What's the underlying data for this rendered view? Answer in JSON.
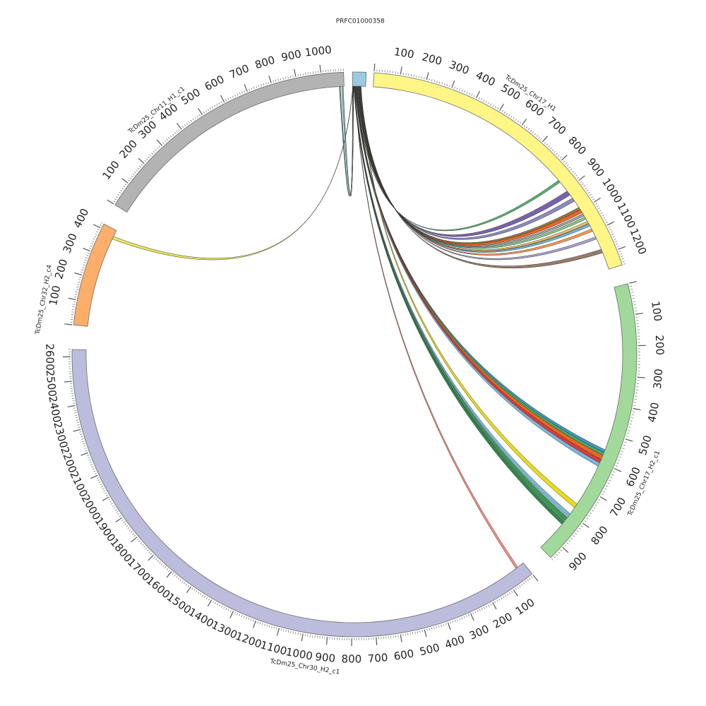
{
  "chart_data": {
    "type": "circos",
    "title": "",
    "chromosomes": [
      {
        "id": "prfc",
        "name": "PRFC01000358",
        "length": 40,
        "color": "#9ecae1",
        "tick_labels": []
      },
      {
        "id": "chr17_h1",
        "name": "TcDm25_Chr17_H1",
        "length": 1260,
        "color": "#fff685",
        "tick_labels": [
          "100",
          "200",
          "300",
          "400",
          "500",
          "600",
          "700",
          "800",
          "900",
          "1000",
          "1100",
          "1200"
        ]
      },
      {
        "id": "chr17_h2",
        "name": "TcDm25_Chr17_H2_c1",
        "length": 950,
        "color": "#a1d99b",
        "tick_labels": [
          "100",
          "200",
          "300",
          "400",
          "500",
          "600",
          "700",
          "800",
          "900"
        ]
      },
      {
        "id": "chr30_h2",
        "name": "TcDm25_Chr30_H2_c1",
        "length": 2630,
        "color": "#bcbddc",
        "tick_labels": [
          "100",
          "200",
          "300",
          "400",
          "500",
          "600",
          "700",
          "800",
          "900",
          "1000",
          "1100",
          "1200",
          "1300",
          "1400",
          "1500",
          "1600",
          "1700",
          "1800",
          "1900",
          "2000",
          "2100",
          "2200",
          "2300",
          "2400",
          "2500",
          "2600"
        ]
      },
      {
        "id": "chr32_h2",
        "name": "TcDm25_Chr32_H2_c4",
        "length": 420,
        "color": "#fdae6b",
        "tick_labels": [
          "100",
          "200",
          "300",
          "400"
        ]
      },
      {
        "id": "chr11_h1",
        "name": "TcDm25_Chr11_H1_c1",
        "length": 1090,
        "color": "#b3b3b3",
        "tick_labels": [
          "100",
          "200",
          "300",
          "400",
          "500",
          "600",
          "700",
          "800",
          "900",
          "1000"
        ]
      }
    ],
    "links": [
      {
        "from": "prfc",
        "f": [
          12,
          13
        ],
        "to": "chr17_h1",
        "t": [
          850,
          860
        ],
        "color": "#41ab5d"
      },
      {
        "from": "prfc",
        "f": [
          14,
          15
        ],
        "to": "chr17_h1",
        "t": [
          905,
          925
        ],
        "color": "#6a51a3"
      },
      {
        "from": "prfc",
        "f": [
          15,
          16
        ],
        "to": "chr17_h1",
        "t": [
          940,
          955
        ],
        "color": "#807dba"
      },
      {
        "from": "prfc",
        "f": [
          16,
          17
        ],
        "to": "chr17_h1",
        "t": [
          985,
          995
        ],
        "color": "#8c6d31"
      },
      {
        "from": "prfc",
        "f": [
          17,
          18
        ],
        "to": "chr17_h1",
        "t": [
          995,
          1010
        ],
        "color": "#e6550d"
      },
      {
        "from": "prfc",
        "f": [
          18,
          19
        ],
        "to": "chr17_h1",
        "t": [
          1015,
          1025
        ],
        "color": "#969696"
      },
      {
        "from": "prfc",
        "f": [
          19,
          20
        ],
        "to": "chr17_h1",
        "t": [
          1030,
          1040
        ],
        "color": "#74c476"
      },
      {
        "from": "prfc",
        "f": [
          20,
          21
        ],
        "to": "chr17_h1",
        "t": [
          1050,
          1060
        ],
        "color": "#e7ba52"
      },
      {
        "from": "prfc",
        "f": [
          21,
          22
        ],
        "to": "chr17_h1",
        "t": [
          1062,
          1072
        ],
        "color": "#6baed6"
      },
      {
        "from": "prfc",
        "f": [
          22,
          23
        ],
        "to": "chr17_h1",
        "t": [
          1085,
          1095
        ],
        "color": "#fd8d3c"
      },
      {
        "from": "prfc",
        "f": [
          23,
          24
        ],
        "to": "chr17_h1",
        "t": [
          1120,
          1130
        ],
        "color": "#9e9ac8"
      },
      {
        "from": "prfc",
        "f": [
          24,
          25
        ],
        "to": "chr17_h1",
        "t": [
          1175,
          1190
        ],
        "color": "#8c6d5a"
      },
      {
        "from": "prfc",
        "f": [
          8,
          9
        ],
        "to": "chr17_h2",
        "t": [
          555,
          565
        ],
        "color": "#2b8cbe"
      },
      {
        "from": "prfc",
        "f": [
          9,
          10
        ],
        "to": "chr17_h2",
        "t": [
          565,
          575
        ],
        "color": "#31a354"
      },
      {
        "from": "prfc",
        "f": [
          10,
          11
        ],
        "to": "chr17_h2",
        "t": [
          575,
          590
        ],
        "color": "#e6550d"
      },
      {
        "from": "prfc",
        "f": [
          11,
          12
        ],
        "to": "chr17_h2",
        "t": [
          590,
          602
        ],
        "color": "#d62728"
      },
      {
        "from": "prfc",
        "f": [
          7,
          8
        ],
        "to": "chr17_h2",
        "t": [
          602,
          615
        ],
        "color": "#6baed6"
      },
      {
        "from": "prfc",
        "f": [
          25,
          26
        ],
        "to": "chr17_h2",
        "t": [
          760,
          775
        ],
        "color": "#e5d800"
      },
      {
        "from": "prfc",
        "f": [
          5,
          6
        ],
        "to": "chr17_h2",
        "t": [
          800,
          812
        ],
        "color": "#6baed6"
      },
      {
        "from": "prfc",
        "f": [
          4,
          5
        ],
        "to": "chr17_h2",
        "t": [
          815,
          830
        ],
        "color": "#238b45"
      },
      {
        "from": "prfc",
        "f": [
          3,
          4
        ],
        "to": "chr17_h2",
        "t": [
          832,
          845
        ],
        "color": "#1b7837"
      },
      {
        "from": "prfc",
        "f": [
          6,
          7
        ],
        "to": "chr30_h2",
        "t": [
          30,
          40
        ],
        "color": "#fb8072"
      },
      {
        "from": "prfc",
        "f": [
          1,
          2
        ],
        "to": "chr32_h2",
        "t": [
          380,
          392
        ],
        "color": "#e5e54c"
      },
      {
        "from": "prfc",
        "f": [
          2,
          3
        ],
        "to": "chr11_h1",
        "t": [
          1080,
          1086
        ],
        "color": "#6baed6"
      },
      {
        "from": "prfc",
        "f": [
          0,
          1
        ],
        "to": "chr11_h1",
        "t": [
          1070,
          1074
        ],
        "color": "#31a354"
      }
    ]
  }
}
